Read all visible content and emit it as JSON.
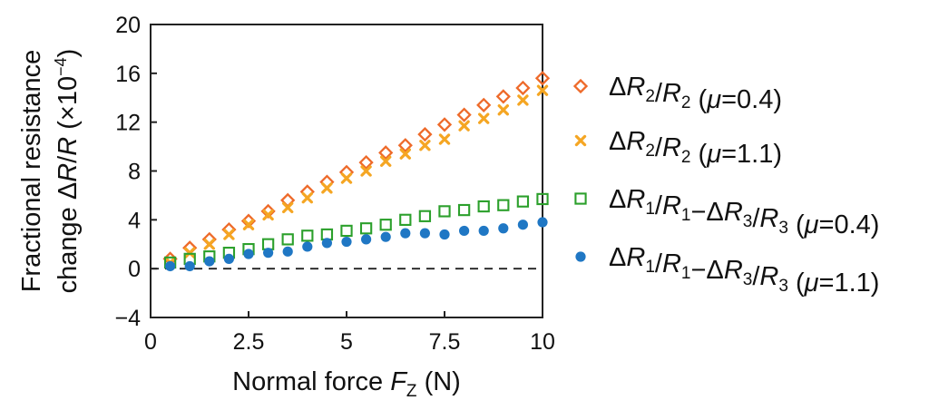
{
  "chart_data": {
    "type": "scatter",
    "xlabel": {
      "main": "Normal force ",
      "var": "F",
      "sub": "Z",
      "unit": " (N)"
    },
    "ylabel": {
      "line1": "Fractional resistance",
      "line2_prefix": "change ",
      "delta": "Δ",
      "var1": "R",
      "slash": "/",
      "var2": "R",
      "unit_open": " (×10",
      "unit_exp": "−4",
      "unit_close": ")"
    },
    "xlim": [
      0,
      10
    ],
    "ylim": [
      -4,
      20
    ],
    "xticks": [
      0,
      2.5,
      5,
      7.5,
      10
    ],
    "xtick_labels": [
      "0",
      "2.5",
      "5",
      "7.5",
      "10"
    ],
    "yticks": [
      -4,
      0,
      4,
      8,
      12,
      16,
      20
    ],
    "ytick_labels": [
      "−4",
      "0",
      "4",
      "8",
      "12",
      "16",
      "20"
    ],
    "reference_line": {
      "y": 0,
      "style": "dashed"
    },
    "series": [
      {
        "name": "ΔR2/R2 (μ=0.4)",
        "label_parts": [
          [
            "Δ",
            "n"
          ],
          [
            "R",
            "i"
          ],
          [
            "2",
            "s"
          ],
          [
            "/",
            "n"
          ],
          [
            "R",
            "i"
          ],
          [
            "2",
            "s"
          ],
          [
            " (",
            "n"
          ],
          [
            "μ",
            "i"
          ],
          [
            "=0.4)",
            "n"
          ]
        ],
        "marker": "diamond",
        "color": "#ee6a2a",
        "x": [
          0.5,
          1,
          1.5,
          2,
          2.5,
          3,
          3.5,
          4,
          4.5,
          5,
          5.5,
          6,
          6.5,
          7,
          7.5,
          8,
          8.5,
          9,
          9.5,
          10
        ],
        "y": [
          0.8,
          1.7,
          2.4,
          3.2,
          3.9,
          4.7,
          5.6,
          6.3,
          7.1,
          7.9,
          8.7,
          9.5,
          10.1,
          11.0,
          11.8,
          12.6,
          13.4,
          14.1,
          14.8,
          15.6
        ]
      },
      {
        "name": "ΔR2/R2 (μ=1.1)",
        "label_parts": [
          [
            "Δ",
            "n"
          ],
          [
            "R",
            "i"
          ],
          [
            "2",
            "s"
          ],
          [
            "/",
            "n"
          ],
          [
            "R",
            "i"
          ],
          [
            "2",
            "s"
          ],
          [
            " (",
            "n"
          ],
          [
            "μ",
            "i"
          ],
          [
            "=1.1)",
            "n"
          ]
        ],
        "marker": "x",
        "color": "#f5a623",
        "x": [
          0.5,
          1,
          1.5,
          2,
          2.5,
          3,
          3.5,
          4,
          4.5,
          5,
          5.5,
          6,
          6.5,
          7,
          7.5,
          8,
          8.5,
          9,
          9.5,
          10
        ],
        "y": [
          0.5,
          1.3,
          2.0,
          2.8,
          3.6,
          4.4,
          5.0,
          5.8,
          6.6,
          7.4,
          8.0,
          8.8,
          9.4,
          10.1,
          10.6,
          11.7,
          12.3,
          13.0,
          13.8,
          14.6
        ]
      },
      {
        "name": "ΔR1/R1−ΔR3/R3 (μ=0.4)",
        "label_parts": [
          [
            "Δ",
            "n"
          ],
          [
            "R",
            "i"
          ],
          [
            "1",
            "s"
          ],
          [
            "/",
            "n"
          ],
          [
            "R",
            "i"
          ],
          [
            "1",
            "s"
          ],
          [
            "−Δ",
            "n"
          ],
          [
            "R",
            "i"
          ],
          [
            "3",
            "s"
          ],
          [
            "/",
            "n"
          ],
          [
            "R",
            "i"
          ],
          [
            "3",
            "s"
          ],
          [
            " (",
            "n"
          ],
          [
            "μ",
            "i"
          ],
          [
            "=0.4)",
            "n"
          ]
        ],
        "marker": "square",
        "color": "#2ca02c",
        "x": [
          0.5,
          1,
          1.5,
          2,
          2.5,
          3,
          3.5,
          4,
          4.5,
          5,
          5.5,
          6,
          6.5,
          7,
          7.5,
          8,
          8.5,
          9,
          9.5,
          10
        ],
        "y": [
          0.5,
          0.8,
          1.0,
          1.3,
          1.6,
          2.0,
          2.4,
          2.7,
          2.8,
          3.1,
          3.3,
          3.6,
          4.0,
          4.3,
          4.7,
          4.8,
          5.1,
          5.2,
          5.5,
          5.7
        ]
      },
      {
        "name": "ΔR1/R1−ΔR3/R3 (μ=1.1)",
        "label_parts": [
          [
            "Δ",
            "n"
          ],
          [
            "R",
            "i"
          ],
          [
            "1",
            "s"
          ],
          [
            "/",
            "n"
          ],
          [
            "R",
            "i"
          ],
          [
            "1",
            "s"
          ],
          [
            "−Δ",
            "n"
          ],
          [
            "R",
            "i"
          ],
          [
            "3",
            "s"
          ],
          [
            "/",
            "n"
          ],
          [
            "R",
            "i"
          ],
          [
            "3",
            "s"
          ],
          [
            " (",
            "n"
          ],
          [
            "μ",
            "i"
          ],
          [
            "=1.1)",
            "n"
          ]
        ],
        "marker": "circle",
        "color": "#1f77c4",
        "x": [
          0.5,
          1,
          1.5,
          2,
          2.5,
          3,
          3.5,
          4,
          4.5,
          5,
          5.5,
          6,
          6.5,
          7,
          7.5,
          8,
          8.5,
          9,
          9.5,
          10
        ],
        "y": [
          0.2,
          0.2,
          0.6,
          0.8,
          1.2,
          1.3,
          1.4,
          1.8,
          2.1,
          2.2,
          2.4,
          2.6,
          2.9,
          2.9,
          2.8,
          3.1,
          3.1,
          3.3,
          3.6,
          3.8
        ]
      }
    ]
  }
}
